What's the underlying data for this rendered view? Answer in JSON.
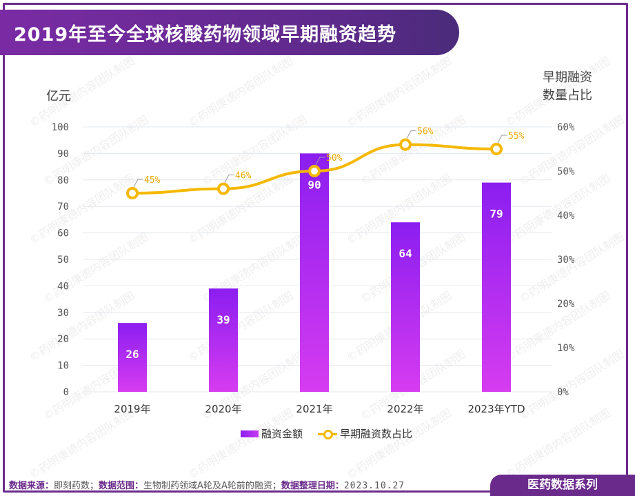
{
  "title": "2019年至今全球核酸药物领域早期融资趋势",
  "left_axis_title": "亿元",
  "right_axis_title_line1": "早期融资",
  "right_axis_title_line2": "数量占比",
  "watermark_text": "©药明康德内容团队制图",
  "footer": {
    "source_label": "数据来源：",
    "source_value": "即刻药数；",
    "scope_label": "数据范围：",
    "scope_value": "生物制药领域A轮及A轮前的融资；",
    "date_label": "数据整理日期：",
    "date_value": "2023.10.27"
  },
  "series_badge": "医药数据系列",
  "legend": {
    "bar_label": "融资金额",
    "line_label": "早期融资数占比"
  },
  "colors": {
    "frame": "#6a2a8c",
    "bar_top": "#8b1ef0",
    "bar_bottom": "#d63cf0",
    "line": "#f5b800",
    "line_label": "#e8a800"
  },
  "chart_data": {
    "type": "bar+line",
    "categories": [
      "2019年",
      "2020年",
      "2021年",
      "2022年",
      "2023年YTD"
    ],
    "series": [
      {
        "name": "融资金额",
        "type": "bar",
        "axis": "left",
        "values": [
          26,
          39,
          90,
          64,
          79
        ]
      },
      {
        "name": "早期融资数占比",
        "type": "line",
        "axis": "right",
        "values": [
          45,
          46,
          50,
          56,
          55
        ],
        "unit": "%"
      }
    ],
    "left_axis": {
      "min": 0,
      "max": 100,
      "step": 10,
      "ticks": [
        "0",
        "10",
        "20",
        "30",
        "40",
        "50",
        "60",
        "70",
        "80",
        "90",
        "100"
      ]
    },
    "right_axis": {
      "min": 0,
      "max": 60,
      "step": 10,
      "ticks": [
        "0%",
        "10%",
        "20%",
        "30%",
        "40%",
        "50%",
        "60%"
      ]
    },
    "grid": true,
    "legend_position": "bottom"
  }
}
